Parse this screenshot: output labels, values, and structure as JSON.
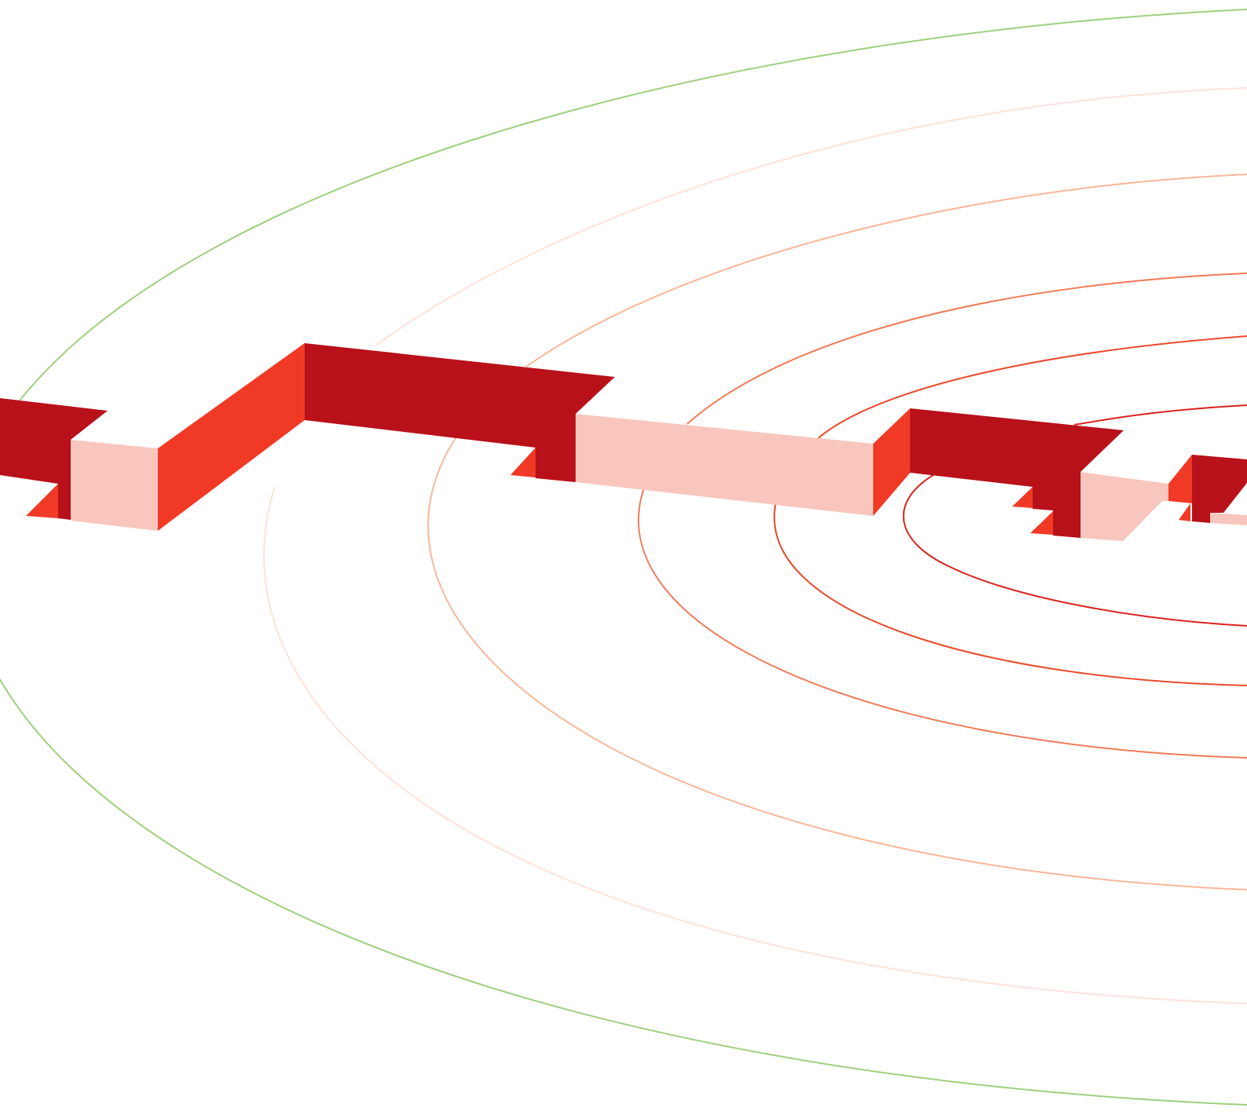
{
  "illustration": {
    "rings": [
      {
        "id": "ring-1",
        "color": "#9fcf7e"
      },
      {
        "id": "ring-2",
        "color": "#fde2d9"
      },
      {
        "id": "ring-3",
        "color": "#f9b79a"
      },
      {
        "id": "ring-4",
        "color": "#f17a57"
      },
      {
        "id": "ring-5",
        "color": "#ea4a2c"
      },
      {
        "id": "ring-6",
        "color": "#d8231e"
      }
    ],
    "palette": {
      "top": "#b8111a",
      "side_bright": "#f03a25",
      "side_light": "#f8c6bd"
    }
  }
}
